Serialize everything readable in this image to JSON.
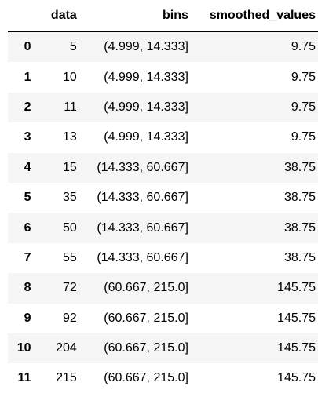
{
  "table": {
    "columns": [
      "",
      "data",
      "bins",
      "smoothed_values"
    ],
    "rows": [
      {
        "index": "0",
        "data": "5",
        "bins": "(4.999, 14.333]",
        "smoothed_values": "9.75"
      },
      {
        "index": "1",
        "data": "10",
        "bins": "(4.999, 14.333]",
        "smoothed_values": "9.75"
      },
      {
        "index": "2",
        "data": "11",
        "bins": "(4.999, 14.333]",
        "smoothed_values": "9.75"
      },
      {
        "index": "3",
        "data": "13",
        "bins": "(4.999, 14.333]",
        "smoothed_values": "9.75"
      },
      {
        "index": "4",
        "data": "15",
        "bins": "(14.333, 60.667]",
        "smoothed_values": "38.75"
      },
      {
        "index": "5",
        "data": "35",
        "bins": "(14.333, 60.667]",
        "smoothed_values": "38.75"
      },
      {
        "index": "6",
        "data": "50",
        "bins": "(14.333, 60.667]",
        "smoothed_values": "38.75"
      },
      {
        "index": "7",
        "data": "55",
        "bins": "(14.333, 60.667]",
        "smoothed_values": "38.75"
      },
      {
        "index": "8",
        "data": "72",
        "bins": "(60.667, 215.0]",
        "smoothed_values": "145.75"
      },
      {
        "index": "9",
        "data": "92",
        "bins": "(60.667, 215.0]",
        "smoothed_values": "145.75"
      },
      {
        "index": "10",
        "data": "204",
        "bins": "(60.667, 215.0]",
        "smoothed_values": "145.75"
      },
      {
        "index": "11",
        "data": "215",
        "bins": "(60.667, 215.0]",
        "smoothed_values": "145.75"
      }
    ]
  }
}
